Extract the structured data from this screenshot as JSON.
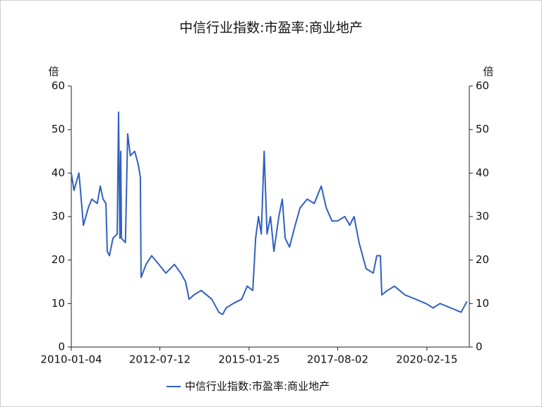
{
  "chart_data": {
    "type": "line",
    "title": "中信行业指数:市盈率:商业地产",
    "y_label": "倍",
    "y2_label": "倍",
    "x": [
      "2010-01-04",
      "2010-02-01",
      "2010-03-25",
      "2010-05-10",
      "2010-06-30",
      "2010-08-05",
      "2010-10-01",
      "2010-11-01",
      "2010-12-01",
      "2010-12-30",
      "2011-01-13",
      "2011-02-04",
      "2011-03-13",
      "2011-04-26",
      "2011-05-10",
      "2011-05-24",
      "2011-06-02",
      "2011-06-09",
      "2011-07-20",
      "2011-08-13",
      "2011-09-10",
      "2011-10-25",
      "2011-12-01",
      "2011-12-23",
      "2011-12-30",
      "2012-02-20",
      "2012-04-18",
      "2012-07-01",
      "2012-09-13",
      "2012-12-10",
      "2013-02-15",
      "2013-04-06",
      "2013-05-12",
      "2013-07-01",
      "2013-09-15",
      "2014-01-03",
      "2014-03-17",
      "2014-04-25",
      "2014-06-01",
      "2014-08-13",
      "2014-11-09",
      "2015-01-06",
      "2015-03-05",
      "2015-04-03",
      "2015-05-03",
      "2015-06-01",
      "2015-07-01",
      "2015-07-31",
      "2015-09-05",
      "2015-10-10",
      "2015-11-30",
      "2016-01-05",
      "2016-02-04",
      "2016-03-20",
      "2016-05-18",
      "2016-07-08",
      "2016-09-20",
      "2016-12-02",
      "2017-02-13",
      "2017-04-06",
      "2017-06-04",
      "2017-08-02",
      "2017-10-15",
      "2017-12-06",
      "2018-01-20",
      "2018-03-13",
      "2018-05-25",
      "2018-08-07",
      "2018-09-13",
      "2018-10-20",
      "2018-11-04",
      "2019-01-01",
      "2019-03-15",
      "2019-07-01",
      "2019-10-21",
      "2020-02-05",
      "2020-04-20",
      "2020-07-01",
      "2020-10-20",
      "2021-02-05",
      "2021-04-06"
    ],
    "series": [
      {
        "name": "中信行业指数:市盈率:商业地产",
        "color": "#3060c0",
        "values": [
          40,
          36,
          40,
          28,
          32,
          34,
          33,
          37,
          34,
          33,
          22,
          21,
          25,
          26,
          54,
          25,
          45,
          25,
          24,
          49,
          44,
          45,
          42,
          39,
          16,
          19,
          21,
          19,
          17,
          19,
          17,
          15,
          11,
          12,
          13,
          11,
          8,
          7.5,
          9,
          10,
          11,
          14,
          13,
          25,
          30,
          26,
          45,
          26,
          30,
          22,
          30,
          34,
          25,
          23,
          28,
          32,
          34,
          33,
          37,
          32,
          29,
          29,
          30,
          28,
          30,
          24,
          18,
          17,
          21,
          21,
          12,
          13,
          14,
          12,
          11,
          10,
          9,
          10,
          9,
          8,
          10.5
        ]
      }
    ],
    "xlim": [
      "2010-01-04",
      "2021-05-01"
    ],
    "xticks": [
      "2010-01-04",
      "2012-07-12",
      "2015-01-25",
      "2017-08-02",
      "2020-02-15"
    ],
    "ylim": [
      0,
      60
    ],
    "yticks": [
      0,
      10,
      20,
      30,
      40,
      50,
      60
    ],
    "y2lim": [
      0,
      60
    ],
    "y2ticks": [
      0,
      10,
      20,
      30,
      40,
      50,
      60
    ]
  }
}
